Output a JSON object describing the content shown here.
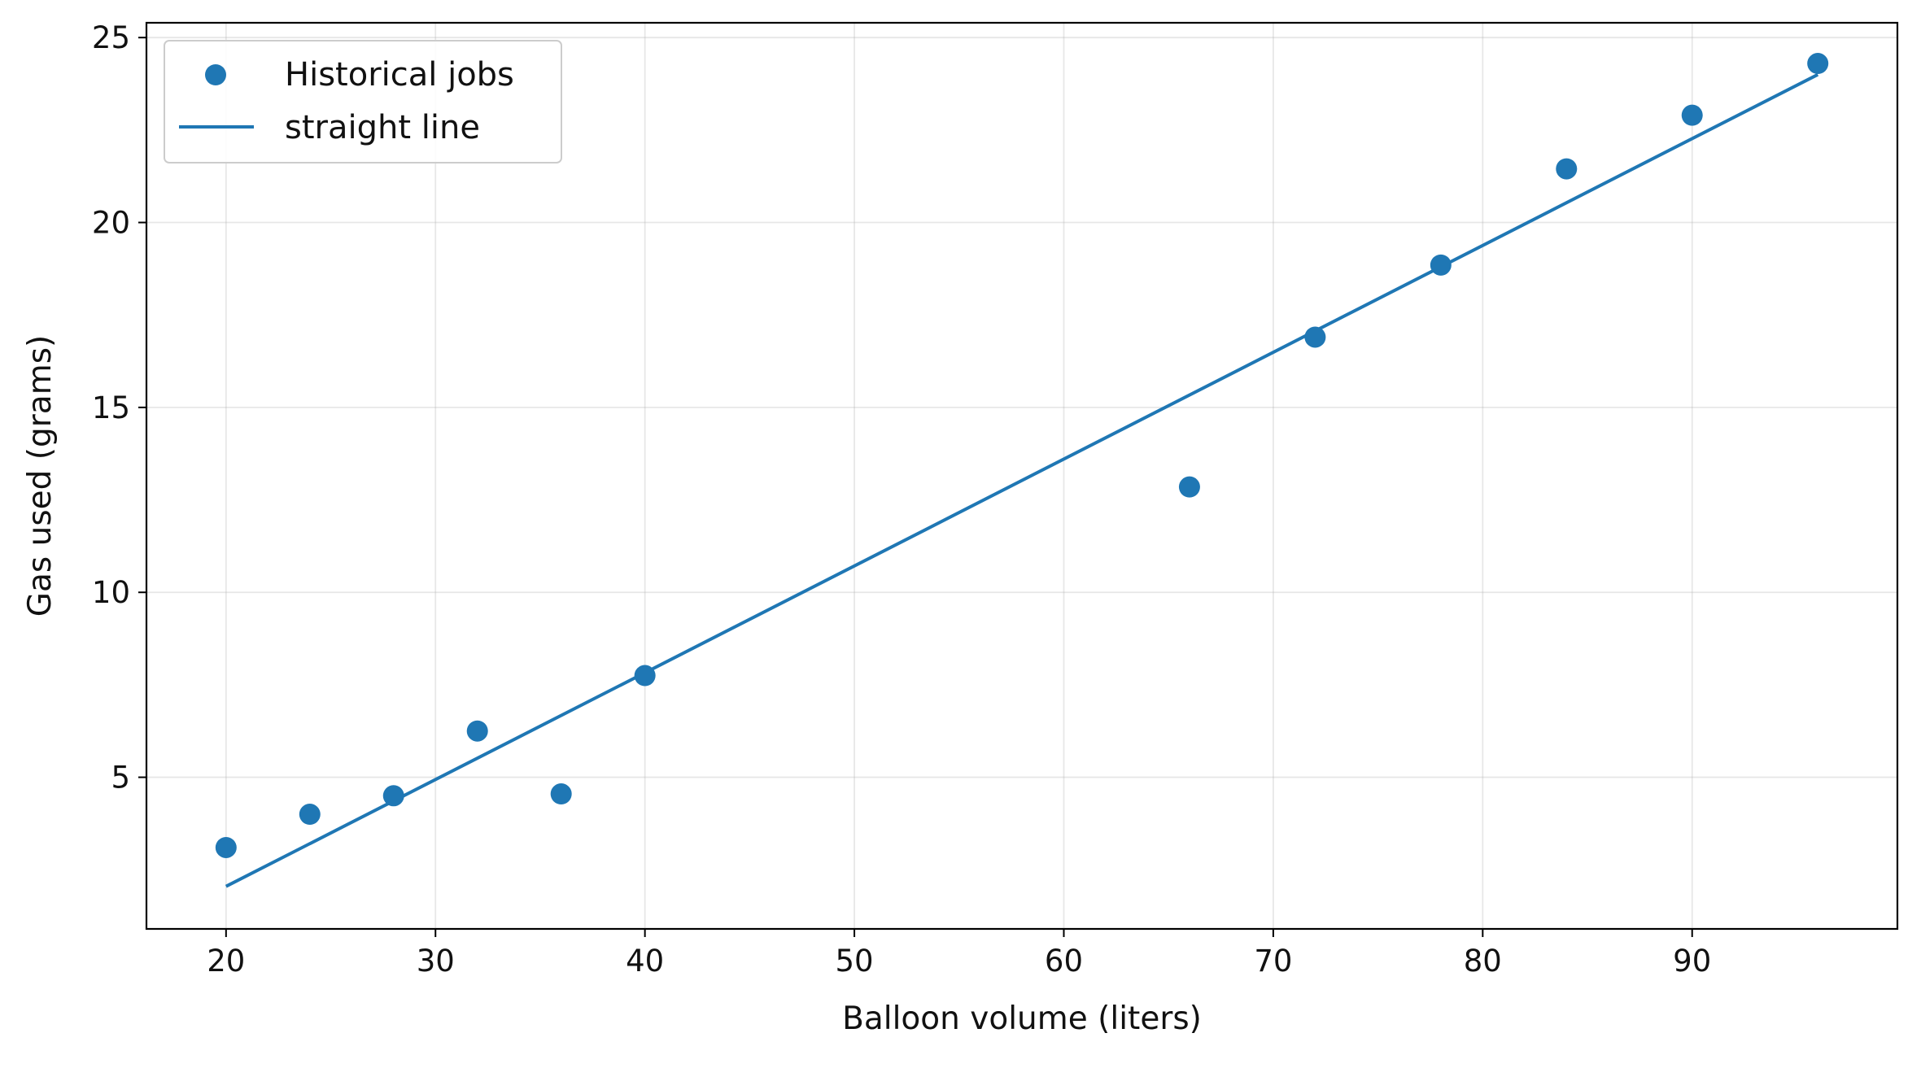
{
  "chart_data": {
    "type": "scatter",
    "title": "",
    "xlabel": "Balloon volume (liters)",
    "ylabel": "Gas used (grams)",
    "xlim": [
      16.2,
      99.8
    ],
    "ylim": [
      0.9,
      25.4
    ],
    "xticks": [
      20,
      30,
      40,
      50,
      60,
      70,
      80,
      90
    ],
    "yticks": [
      5,
      10,
      15,
      20,
      25
    ],
    "grid": true,
    "legend_position": "top-left",
    "series": [
      {
        "name": "Historical jobs",
        "kind": "scatter",
        "color": "#1f77b4",
        "x": [
          20,
          24,
          28,
          32,
          36,
          40,
          66,
          72,
          78,
          84,
          90,
          96
        ],
        "y": [
          3.1,
          4.0,
          4.5,
          6.25,
          4.55,
          7.75,
          12.85,
          16.9,
          18.85,
          21.45,
          22.9,
          24.3
        ]
      },
      {
        "name": "straight line",
        "kind": "line",
        "color": "#1f77b4",
        "x": [
          20,
          96
        ],
        "y": [
          2.05,
          24.0
        ]
      }
    ]
  }
}
